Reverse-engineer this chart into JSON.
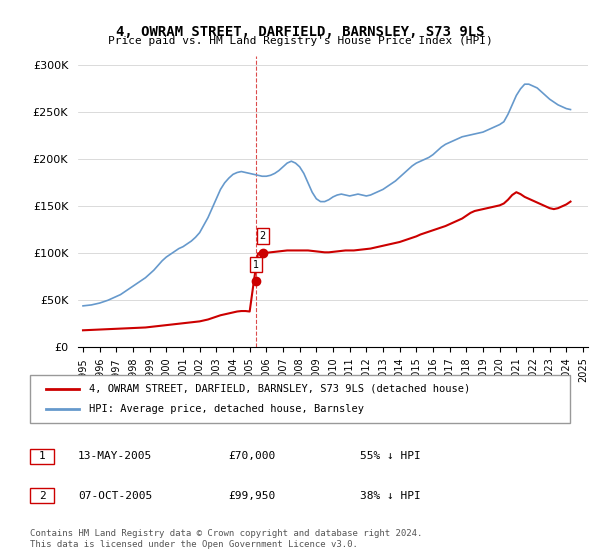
{
  "title": "4, OWRAM STREET, DARFIELD, BARNSLEY, S73 9LS",
  "subtitle": "Price paid vs. HM Land Registry's House Price Index (HPI)",
  "ylabel": "",
  "xlabel": "",
  "ylim": [
    0,
    310000
  ],
  "yticks": [
    0,
    50000,
    100000,
    150000,
    200000,
    250000,
    300000
  ],
  "ytick_labels": [
    "£0",
    "£50K",
    "£100K",
    "£150K",
    "£200K",
    "£250K",
    "£300K"
  ],
  "xtick_years": [
    1995,
    1996,
    1997,
    1998,
    1999,
    2000,
    2001,
    2002,
    2003,
    2004,
    2005,
    2006,
    2007,
    2008,
    2009,
    2010,
    2011,
    2012,
    2013,
    2014,
    2015,
    2016,
    2017,
    2018,
    2019,
    2020,
    2021,
    2022,
    2023,
    2024,
    2025
  ],
  "hpi_x": [
    1995.0,
    1995.25,
    1995.5,
    1995.75,
    1996.0,
    1996.25,
    1996.5,
    1996.75,
    1997.0,
    1997.25,
    1997.5,
    1997.75,
    1998.0,
    1998.25,
    1998.5,
    1998.75,
    1999.0,
    1999.25,
    1999.5,
    1999.75,
    2000.0,
    2000.25,
    2000.5,
    2000.75,
    2001.0,
    2001.25,
    2001.5,
    2001.75,
    2002.0,
    2002.25,
    2002.5,
    2002.75,
    2003.0,
    2003.25,
    2003.5,
    2003.75,
    2004.0,
    2004.25,
    2004.5,
    2004.75,
    2005.0,
    2005.25,
    2005.5,
    2005.75,
    2006.0,
    2006.25,
    2006.5,
    2006.75,
    2007.0,
    2007.25,
    2007.5,
    2007.75,
    2008.0,
    2008.25,
    2008.5,
    2008.75,
    2009.0,
    2009.25,
    2009.5,
    2009.75,
    2010.0,
    2010.25,
    2010.5,
    2010.75,
    2011.0,
    2011.25,
    2011.5,
    2011.75,
    2012.0,
    2012.25,
    2012.5,
    2012.75,
    2013.0,
    2013.25,
    2013.5,
    2013.75,
    2014.0,
    2014.25,
    2014.5,
    2014.75,
    2015.0,
    2015.25,
    2015.5,
    2015.75,
    2016.0,
    2016.25,
    2016.5,
    2016.75,
    2017.0,
    2017.25,
    2017.5,
    2017.75,
    2018.0,
    2018.25,
    2018.5,
    2018.75,
    2019.0,
    2019.25,
    2019.5,
    2019.75,
    2020.0,
    2020.25,
    2020.5,
    2020.75,
    2021.0,
    2021.25,
    2021.5,
    2021.75,
    2022.0,
    2022.25,
    2022.5,
    2022.75,
    2023.0,
    2023.25,
    2023.5,
    2023.75,
    2024.0,
    2024.25
  ],
  "hpi_y": [
    44000,
    44500,
    45000,
    46000,
    47000,
    48500,
    50000,
    52000,
    54000,
    56000,
    59000,
    62000,
    65000,
    68000,
    71000,
    74000,
    78000,
    82000,
    87000,
    92000,
    96000,
    99000,
    102000,
    105000,
    107000,
    110000,
    113000,
    117000,
    122000,
    130000,
    138000,
    148000,
    158000,
    168000,
    175000,
    180000,
    184000,
    186000,
    187000,
    186000,
    185000,
    184000,
    183000,
    182000,
    182000,
    183000,
    185000,
    188000,
    192000,
    196000,
    198000,
    196000,
    192000,
    185000,
    175000,
    165000,
    158000,
    155000,
    155000,
    157000,
    160000,
    162000,
    163000,
    162000,
    161000,
    162000,
    163000,
    162000,
    161000,
    162000,
    164000,
    166000,
    168000,
    171000,
    174000,
    177000,
    181000,
    185000,
    189000,
    193000,
    196000,
    198000,
    200000,
    202000,
    205000,
    209000,
    213000,
    216000,
    218000,
    220000,
    222000,
    224000,
    225000,
    226000,
    227000,
    228000,
    229000,
    231000,
    233000,
    235000,
    237000,
    240000,
    248000,
    258000,
    268000,
    275000,
    280000,
    280000,
    278000,
    276000,
    272000,
    268000,
    264000,
    261000,
    258000,
    256000,
    254000,
    253000
  ],
  "red_x": [
    1995.0,
    1995.25,
    1995.5,
    1995.75,
    1996.0,
    1996.25,
    1996.5,
    1996.75,
    1997.0,
    1997.25,
    1997.5,
    1997.75,
    1998.0,
    1998.25,
    1998.5,
    1998.75,
    1999.0,
    1999.25,
    1999.5,
    1999.75,
    2000.0,
    2000.25,
    2000.5,
    2000.75,
    2001.0,
    2001.25,
    2001.5,
    2001.75,
    2002.0,
    2002.25,
    2002.5,
    2002.75,
    2003.0,
    2003.25,
    2003.5,
    2003.75,
    2004.0,
    2004.25,
    2004.5,
    2004.75,
    2005.0,
    2005.25,
    2005.5,
    2005.75,
    2006.0,
    2006.25,
    2006.5,
    2006.75,
    2007.0,
    2007.25,
    2007.5,
    2007.75,
    2008.0,
    2008.25,
    2008.5,
    2008.75,
    2009.0,
    2009.25,
    2009.5,
    2009.75,
    2010.0,
    2010.25,
    2010.5,
    2010.75,
    2011.0,
    2011.25,
    2011.5,
    2011.75,
    2012.0,
    2012.25,
    2012.5,
    2012.75,
    2013.0,
    2013.25,
    2013.5,
    2013.75,
    2014.0,
    2014.25,
    2014.5,
    2014.75,
    2015.0,
    2015.25,
    2015.5,
    2015.75,
    2016.0,
    2016.25,
    2016.5,
    2016.75,
    2017.0,
    2017.25,
    2017.5,
    2017.75,
    2018.0,
    2018.25,
    2018.5,
    2018.75,
    2019.0,
    2019.25,
    2019.5,
    2019.75,
    2020.0,
    2020.25,
    2020.5,
    2020.75,
    2021.0,
    2021.25,
    2021.5,
    2021.75,
    2022.0,
    2022.25,
    2022.5,
    2022.75,
    2023.0,
    2023.25,
    2023.5,
    2023.75,
    2024.0,
    2024.25
  ],
  "red_y": [
    18000,
    18200,
    18400,
    18600,
    18800,
    19000,
    19200,
    19400,
    19600,
    19800,
    20000,
    20200,
    20400,
    20600,
    20800,
    21000,
    21500,
    22000,
    22500,
    23000,
    23500,
    24000,
    24500,
    25000,
    25500,
    26000,
    26500,
    27000,
    27500,
    28500,
    29500,
    31000,
    32500,
    34000,
    35000,
    36000,
    37000,
    38000,
    38500,
    38500,
    38000,
    70000,
    99950,
    100000,
    100500,
    101000,
    101500,
    102000,
    102500,
    103000,
    103000,
    103000,
    103000,
    103000,
    103000,
    102500,
    102000,
    101500,
    101000,
    101000,
    101500,
    102000,
    102500,
    103000,
    103000,
    103000,
    103500,
    104000,
    104500,
    105000,
    106000,
    107000,
    108000,
    109000,
    110000,
    111000,
    112000,
    113500,
    115000,
    116500,
    118000,
    120000,
    121500,
    123000,
    124500,
    126000,
    127500,
    129000,
    131000,
    133000,
    135000,
    137000,
    140000,
    143000,
    145000,
    146000,
    147000,
    148000,
    149000,
    150000,
    151000,
    153000,
    157000,
    162000,
    165000,
    163000,
    160000,
    158000,
    156000,
    154000,
    152000,
    150000,
    148000,
    147000,
    148000,
    150000,
    152000,
    155000
  ],
  "vline_x": 2005.37,
  "sale1_x": 2005.37,
  "sale1_y": 70000,
  "sale1_label": "1",
  "sale2_x": 2005.79,
  "sale2_y": 99950,
  "sale2_label": "2",
  "legend_line1": "4, OWRAM STREET, DARFIELD, BARNSLEY, S73 9LS (detached house)",
  "legend_line2": "HPI: Average price, detached house, Barnsley",
  "table_row1": [
    "1",
    "13-MAY-2005",
    "£70,000",
    "55% ↓ HPI"
  ],
  "table_row2": [
    "2",
    "07-OCT-2005",
    "£99,950",
    "38% ↓ HPI"
  ],
  "footer": "Contains HM Land Registry data © Crown copyright and database right 2024.\nThis data is licensed under the Open Government Licence v3.0.",
  "red_color": "#cc0000",
  "blue_color": "#6699cc",
  "vline_color": "#cc0000",
  "bg_color": "#ffffff",
  "grid_color": "#cccccc"
}
